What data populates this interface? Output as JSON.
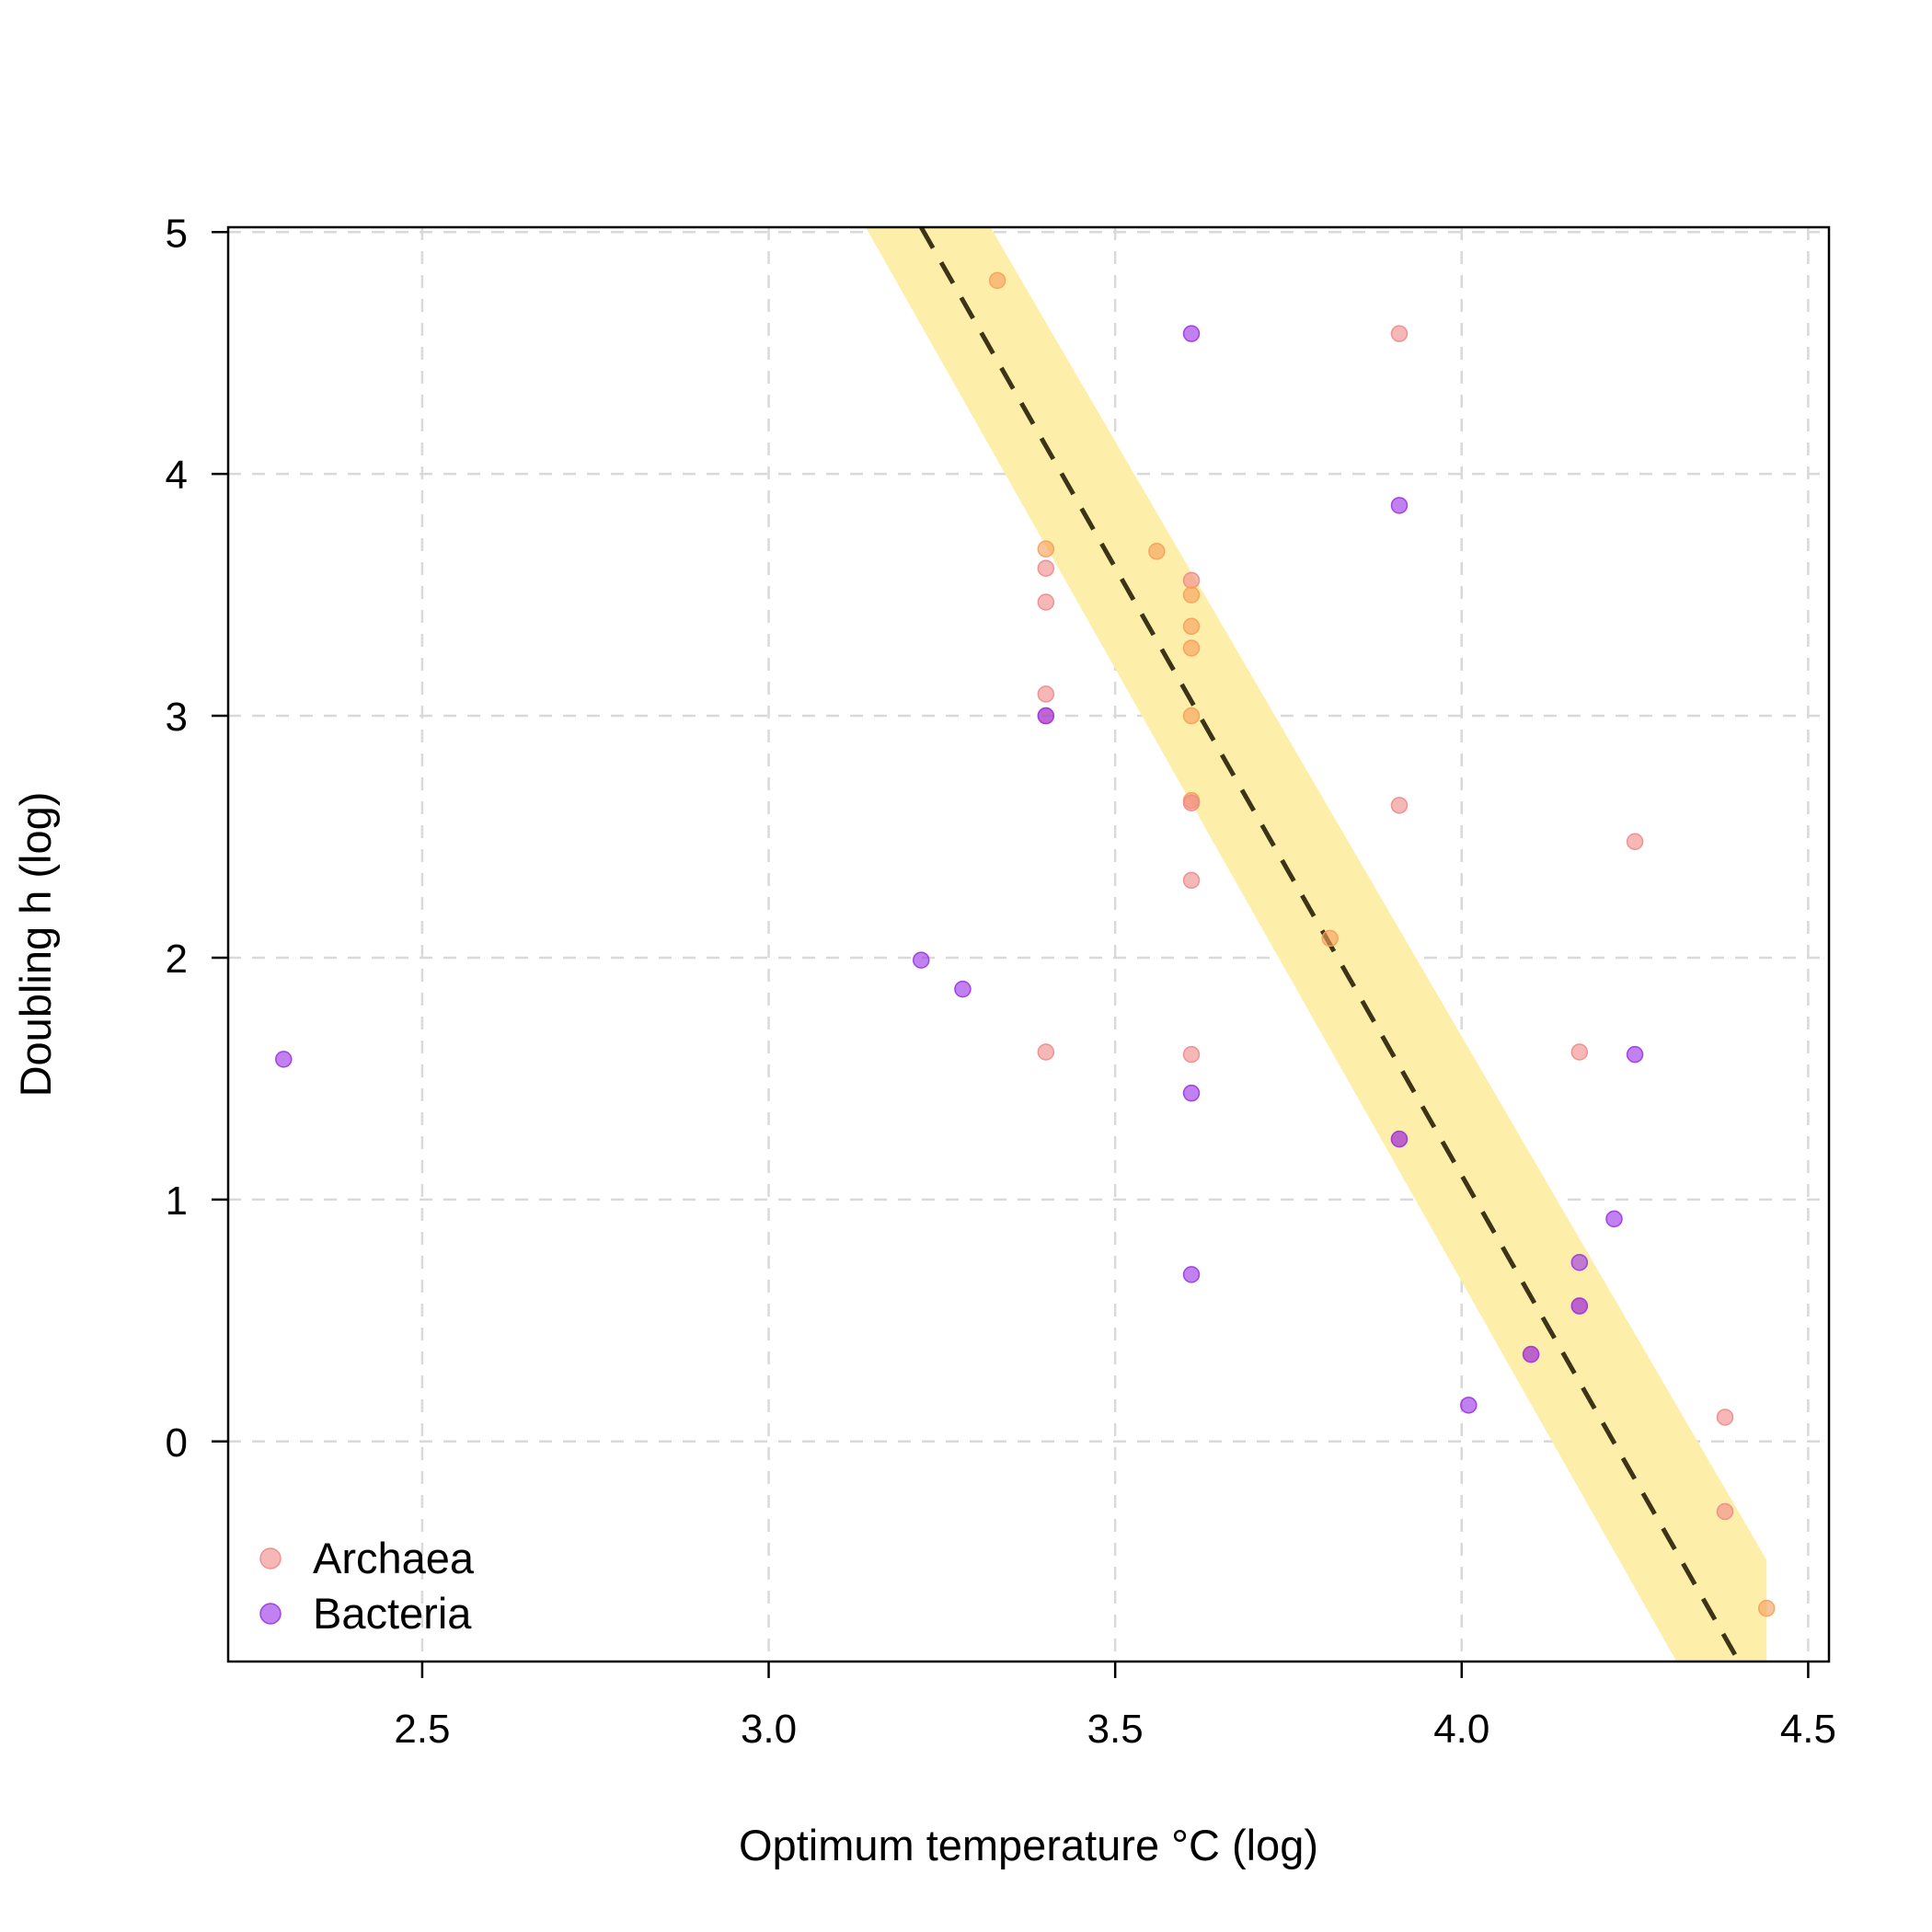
{
  "chart_data": {
    "type": "scatter",
    "title": "",
    "xlabel": "Optimum temperature °C (log)",
    "ylabel": "Doubling h (log)",
    "xlim": [
      2.22,
      4.53
    ],
    "ylim": [
      -0.91,
      5.02
    ],
    "x_ticks": [
      2.5,
      3.0,
      3.5,
      4.0,
      4.5
    ],
    "x_tick_labels": [
      "2.5",
      "3.0",
      "3.5",
      "4.0",
      "4.5"
    ],
    "y_ticks": [
      0,
      1,
      2,
      3,
      4,
      5
    ],
    "y_tick_labels": [
      "0",
      "1",
      "2",
      "3",
      "4",
      "5"
    ],
    "grid": true,
    "legend": {
      "position": "bottom-left",
      "entries": [
        {
          "label": "Archaea",
          "color": "#f08a8a"
        },
        {
          "label": "Bacteria",
          "color": "#9b34e6"
        }
      ]
    },
    "series": [
      {
        "name": "Archaea",
        "color": "#f08a8a",
        "alt_color": "#f6a05a",
        "points": [
          {
            "x": 3.33,
            "y": 4.8,
            "hue": "orange"
          },
          {
            "x": 3.91,
            "y": 4.58,
            "hue": "pink"
          },
          {
            "x": 3.4,
            "y": 3.69,
            "hue": "orange"
          },
          {
            "x": 3.4,
            "y": 3.61,
            "hue": "pink"
          },
          {
            "x": 3.4,
            "y": 3.47,
            "hue": "pink"
          },
          {
            "x": 3.4,
            "y": 3.09,
            "hue": "pink"
          },
          {
            "x": 3.4,
            "y": 3.0,
            "hue": "pink"
          },
          {
            "x": 3.4,
            "y": 1.61,
            "hue": "pink"
          },
          {
            "x": 3.56,
            "y": 3.68,
            "hue": "orange"
          },
          {
            "x": 3.61,
            "y": 3.56,
            "hue": "pink"
          },
          {
            "x": 3.61,
            "y": 3.5,
            "hue": "orange"
          },
          {
            "x": 3.61,
            "y": 3.37,
            "hue": "orange"
          },
          {
            "x": 3.61,
            "y": 3.28,
            "hue": "orange"
          },
          {
            "x": 3.61,
            "y": 3.0,
            "hue": "orange"
          },
          {
            "x": 3.61,
            "y": 2.65,
            "hue": "orange"
          },
          {
            "x": 3.61,
            "y": 2.64,
            "hue": "pink"
          },
          {
            "x": 3.61,
            "y": 2.32,
            "hue": "pink"
          },
          {
            "x": 3.61,
            "y": 1.6,
            "hue": "pink"
          },
          {
            "x": 3.81,
            "y": 2.08,
            "hue": "orange"
          },
          {
            "x": 3.91,
            "y": 2.63,
            "hue": "pink"
          },
          {
            "x": 3.91,
            "y": 1.25,
            "hue": "pink"
          },
          {
            "x": 4.1,
            "y": 0.36,
            "hue": "pink"
          },
          {
            "x": 4.17,
            "y": 1.61,
            "hue": "pink"
          },
          {
            "x": 4.17,
            "y": 0.56,
            "hue": "pink"
          },
          {
            "x": 4.25,
            "y": 2.48,
            "hue": "pink"
          },
          {
            "x": 4.38,
            "y": 0.1,
            "hue": "pink"
          },
          {
            "x": 4.38,
            "y": -0.29,
            "hue": "pink"
          },
          {
            "x": 4.44,
            "y": -0.69,
            "hue": "orange"
          }
        ]
      },
      {
        "name": "Bacteria",
        "color": "#9b34e6",
        "points": [
          {
            "x": 2.3,
            "y": 1.58
          },
          {
            "x": 3.22,
            "y": 1.99
          },
          {
            "x": 3.28,
            "y": 1.87
          },
          {
            "x": 3.4,
            "y": 3.0
          },
          {
            "x": 3.61,
            "y": 4.58
          },
          {
            "x": 3.61,
            "y": 1.44
          },
          {
            "x": 3.61,
            "y": 0.69
          },
          {
            "x": 3.91,
            "y": 3.87
          },
          {
            "x": 3.91,
            "y": 1.25
          },
          {
            "x": 4.01,
            "y": 0.15
          },
          {
            "x": 4.1,
            "y": 0.36
          },
          {
            "x": 4.17,
            "y": 0.74
          },
          {
            "x": 4.17,
            "y": 0.56
          },
          {
            "x": 4.22,
            "y": 0.92
          },
          {
            "x": 4.25,
            "y": 1.6
          }
        ]
      }
    ],
    "fit_line": {
      "style": "dashed",
      "color": "#3d3417",
      "x": [
        3.22,
        4.4
      ],
      "y": [
        5.02,
        -0.91
      ]
    },
    "fit_band": {
      "color": "#fdeeaa",
      "x": [
        3.14,
        3.32,
        4.44,
        4.44,
        4.31
      ],
      "y_upper": [
        5.02,
        5.02,
        -0.49,
        -0.91,
        -0.91
      ],
      "polygon": [
        [
          3.14,
          5.02
        ],
        [
          3.32,
          5.02
        ],
        [
          4.44,
          -0.49
        ],
        [
          4.44,
          -0.91
        ],
        [
          4.31,
          -0.91
        ]
      ]
    }
  }
}
